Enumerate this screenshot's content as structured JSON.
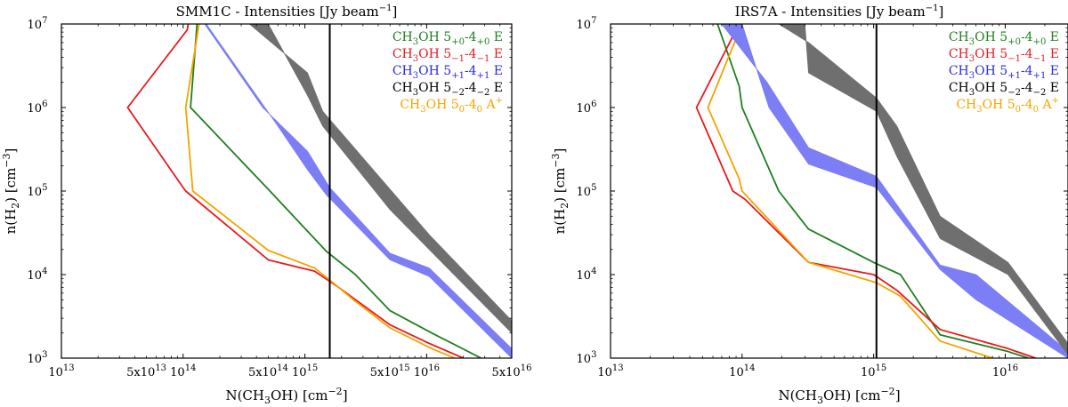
{
  "chart_data": [
    {
      "type": "line",
      "title_prefix": "SMM1C - Intensities [Jy beam",
      "title_sup": "−1",
      "title_suffix": "]",
      "xscale": "log",
      "yscale": "log",
      "xlim": [
        10000000000000.0,
        5e+16
      ],
      "ylim": [
        1000,
        10000000
      ],
      "vline_x": 1600000000000000.0,
      "x_ticks": [
        {
          "value": 10000000000000.0,
          "mantissa": "",
          "base": "10",
          "exp": "13"
        },
        {
          "value": 50000000000000.0,
          "mantissa": "5x",
          "base": "10",
          "exp": "13"
        },
        {
          "value": 100000000000000.0,
          "mantissa": "",
          "base": "10",
          "exp": "14"
        },
        {
          "value": 500000000000000.0,
          "mantissa": "5x",
          "base": "10",
          "exp": "14"
        },
        {
          "value": 1000000000000000.0,
          "mantissa": "",
          "base": "10",
          "exp": "15"
        },
        {
          "value": 5000000000000000.0,
          "mantissa": "5x",
          "base": "10",
          "exp": "15"
        },
        {
          "value": 1e+16,
          "mantissa": "",
          "base": "10",
          "exp": "16"
        },
        {
          "value": 5e+16,
          "mantissa": "5x",
          "base": "10",
          "exp": "16"
        }
      ],
      "y_ticks": [
        {
          "value": 1000,
          "base": "10",
          "exp": "3"
        },
        {
          "value": 10000,
          "base": "10",
          "exp": "4"
        },
        {
          "value": 100000,
          "base": "10",
          "exp": "5"
        },
        {
          "value": 1000000,
          "base": "10",
          "exp": "6"
        },
        {
          "value": 10000000,
          "base": "10",
          "exp": "7"
        }
      ],
      "xlabel": {
        "a": "N(CH",
        "sub": "3",
        "b": "OH) [cm",
        "sup": "−2",
        "c": "]"
      },
      "ylabel": {
        "a": "n(H",
        "sub": "2",
        "b": ") [cm",
        "sup": "−3",
        "c": "]"
      },
      "series": [
        {
          "name": "green",
          "color": "#1f7f1f",
          "kind": "line",
          "points": [
            [
              130000000000000.0,
              10000000.0
            ],
            [
              115000000000000.0,
              1000000.0
            ],
            [
              500000000000000.0,
              105000.0
            ],
            [
              1500000000000000.0,
              19000.0
            ],
            [
              2600000000000000.0,
              10000.0
            ],
            [
              5000000000000000.0,
              3700.0
            ],
            [
              1.1e+16,
              2000.0
            ],
            [
              2.8e+16,
              1000.0
            ]
          ]
        },
        {
          "name": "red",
          "color": "#e8191e",
          "kind": "line",
          "points": [
            [
              110000000000000.0,
              10000000.0
            ],
            [
              108000000000000.0,
              8500000.0
            ],
            [
              35000000000000.0,
              1000000.0
            ],
            [
              100000000000000.0,
              110000.0
            ],
            [
              105000000000000.0,
              100000.0
            ],
            [
              500000000000000.0,
              15000.0
            ],
            [
              1200000000000000.0,
              11000.0
            ],
            [
              1900000000000000.0,
              7000.0
            ],
            [
              5000000000000000.0,
              2500.0
            ],
            [
              1.05e+16,
              1500.0
            ],
            [
              2e+16,
              1000.0
            ]
          ]
        },
        {
          "name": "orange",
          "color": "#f5a300",
          "kind": "line",
          "points": [
            [
              135000000000000.0,
              10000000.0
            ],
            [
              105000000000000.0,
              1000000.0
            ],
            [
              120000000000000.0,
              100000.0
            ],
            [
              500000000000000.0,
              19500.0
            ],
            [
              1200000000000000.0,
              12000.0
            ],
            [
              1700000000000000.0,
              8000.0
            ],
            [
              2500000000000000.0,
              5000.0
            ],
            [
              5000000000000000.0,
              2300.0
            ],
            [
              1.1e+16,
              1300.0
            ],
            [
              1.7e+16,
              1000.0
            ]
          ]
        },
        {
          "name": "blue",
          "color": "#7b7ef5",
          "kind": "band",
          "upper": [
            [
              150000000000000.0,
              10000000.0
            ],
            [
              450000000000000.0,
              1000000.0
            ],
            [
              1050000000000000.0,
              300000.0
            ],
            [
              1600000000000000.0,
              110000.0
            ],
            [
              5000000000000000.0,
              18000.0
            ],
            [
              1.05e+16,
              12000.0
            ],
            [
              5e+16,
              1300.0
            ]
          ],
          "lower": [
            [
              155000000000000.0,
              10000000.0
            ],
            [
              600000000000000.0,
              600000.0
            ],
            [
              1050000000000000.0,
              180000.0
            ],
            [
              1500000000000000.0,
              90000.0
            ],
            [
              5000000000000000.0,
              15000.0
            ],
            [
              1.05e+16,
              9500.0
            ],
            [
              5e+16,
              1000.0
            ]
          ]
        },
        {
          "name": "gray",
          "color": "#6f6f6f",
          "kind": "band",
          "upper": [
            [
              350000000000000.0,
              10000000.0
            ],
            [
              1050000000000000.0,
              2600000.0
            ],
            [
              1400000000000000.0,
              900000.0
            ],
            [
              5000000000000000.0,
              105000.0
            ],
            [
              1.05e+16,
              30000.0
            ],
            [
              5e+16,
              2800.0
            ]
          ],
          "lower": [
            [
              500000000000000.0,
              10000000.0
            ],
            [
              1050000000000000.0,
              1400000.0
            ],
            [
              1400000000000000.0,
              600000.0
            ],
            [
              5000000000000000.0,
              60000.0
            ],
            [
              1.05e+16,
              20000.0
            ],
            [
              5e+16,
              2000.0
            ]
          ]
        }
      ]
    },
    {
      "type": "line",
      "title_prefix": "IRS7A - Intensities [Jy beam",
      "title_sup": "−1",
      "title_suffix": "]",
      "xscale": "log",
      "yscale": "log",
      "xlim": [
        10000000000000.0,
        3e+16
      ],
      "ylim": [
        1000,
        10000000
      ],
      "vline_x": 1050000000000000.0,
      "x_ticks": [
        {
          "value": 10000000000000.0,
          "mantissa": "",
          "base": "10",
          "exp": "13"
        },
        {
          "value": 100000000000000.0,
          "mantissa": "",
          "base": "10",
          "exp": "14"
        },
        {
          "value": 1000000000000000.0,
          "mantissa": "",
          "base": "10",
          "exp": "15"
        },
        {
          "value": 1e+16,
          "mantissa": "",
          "base": "10",
          "exp": "16"
        }
      ],
      "y_ticks": [
        {
          "value": 1000,
          "base": "10",
          "exp": "3"
        },
        {
          "value": 10000,
          "base": "10",
          "exp": "4"
        },
        {
          "value": 100000,
          "base": "10",
          "exp": "5"
        },
        {
          "value": 1000000,
          "base": "10",
          "exp": "6"
        },
        {
          "value": 10000000,
          "base": "10",
          "exp": "7"
        }
      ],
      "xlabel": {
        "a": "N(CH",
        "sub": "3",
        "b": "OH) [cm",
        "sup": "−2",
        "c": "]"
      },
      "ylabel": {
        "a": "n(H",
        "sub": "2",
        "b": ") [cm",
        "sup": "−3",
        "c": "]"
      },
      "series": [
        {
          "name": "green",
          "color": "#1f7f1f",
          "kind": "line",
          "points": [
            [
              65000000000000.0,
              10000000.0
            ],
            [
              95000000000000.0,
              1800000.0
            ],
            [
              100000000000000.0,
              1000000.0
            ],
            [
              190000000000000.0,
              100000.0
            ],
            [
              320000000000000.0,
              35000.0
            ],
            [
              1000000000000000.0,
              14000.0
            ],
            [
              1600000000000000.0,
              10000.0
            ],
            [
              3200000000000000.0,
              1900.0
            ],
            [
              1.05e+16,
              1200.0
            ],
            [
              1.5e+16,
              1000.0
            ]
          ]
        },
        {
          "name": "red",
          "color": "#e8191e",
          "kind": "line",
          "points": [
            [
              95000000000000.0,
              10000000.0
            ],
            [
              45000000000000.0,
              1000000.0
            ],
            [
              85000000000000.0,
              100000.0
            ],
            [
              105000000000000.0,
              80000.0
            ],
            [
              320000000000000.0,
              14000.0
            ],
            [
              1000000000000000.0,
              10000.0
            ],
            [
              1500000000000000.0,
              6500.0
            ],
            [
              3200000000000000.0,
              2200.0
            ],
            [
              1.05e+16,
              1300.0
            ],
            [
              1.7e+16,
              1000.0
            ]
          ]
        },
        {
          "name": "orange",
          "color": "#f5a300",
          "kind": "line",
          "points": [
            [
              100000000000000.0,
              10000000.0
            ],
            [
              55000000000000.0,
              1000000.0
            ],
            [
              95000000000000.0,
              140000.0
            ],
            [
              100000000000000.0,
              100000.0
            ],
            [
              320000000000000.0,
              14000.0
            ],
            [
              1050000000000000.0,
              8000.0
            ],
            [
              1600000000000000.0,
              5500.0
            ],
            [
              3200000000000000.0,
              1600.0
            ],
            [
              8000000000000000.0,
              1000.0
            ]
          ]
        },
        {
          "name": "blue",
          "color": "#7b7ef5",
          "kind": "band",
          "upper": [
            [
              70000000000000.0,
              10000000.0
            ],
            [
              155000000000000.0,
              2000000.0
            ],
            [
              320000000000000.0,
              330000.0
            ],
            [
              1050000000000000.0,
              150000.0
            ],
            [
              3200000000000000.0,
              13000.0
            ],
            [
              6000000000000000.0,
              10000.0
            ],
            [
              3e+16,
              1200.0
            ]
          ],
          "lower": [
            [
              100000000000000.0,
              10000000.0
            ],
            [
              160000000000000.0,
              1000000.0
            ],
            [
              320000000000000.0,
              210000.0
            ],
            [
              1050000000000000.0,
              110000.0
            ],
            [
              3200000000000000.0,
              11500.0
            ],
            [
              6000000000000000.0,
              5000.0
            ],
            [
              3e+16,
              1000.0
            ]
          ]
        },
        {
          "name": "gray",
          "color": "#6f6f6f",
          "kind": "band",
          "upper": [
            [
              190000000000000.0,
              10000000.0
            ],
            [
              320000000000000.0,
              6000000.0
            ],
            [
              1050000000000000.0,
              1300000.0
            ],
            [
              1500000000000000.0,
              600000.0
            ],
            [
              3200000000000000.0,
              50000.0
            ],
            [
              1.05e+16,
              14000.0
            ],
            [
              3e+16,
              1500.0
            ]
          ],
          "lower": [
            [
              300000000000000.0,
              10000000.0
            ],
            [
              320000000000000.0,
              2600000.0
            ],
            [
              1050000000000000.0,
              900000.0
            ],
            [
              1500000000000000.0,
              260000.0
            ],
            [
              3200000000000000.0,
              27000.0
            ],
            [
              1.05e+16,
              10000.0
            ],
            [
              3e+16,
              1100.0
            ]
          ]
        }
      ],
      "legend_placement": "top-right"
    }
  ],
  "legend": [
    {
      "pre": "CH",
      "sub1": "3",
      "mid": "OH 5",
      "sub2": "+0",
      "mid2": "-4",
      "sub3": "+0",
      "tail": " E",
      "sup": "",
      "color": "#1f7f1f"
    },
    {
      "pre": "CH",
      "sub1": "3",
      "mid": "OH 5",
      "sub2": "−1",
      "mid2": "-4",
      "sub3": "−1",
      "tail": " E",
      "sup": "",
      "color": "#e8191e"
    },
    {
      "pre": "CH",
      "sub1": "3",
      "mid": "OH 5",
      "sub2": "+1",
      "mid2": "-4",
      "sub3": "+1",
      "tail": " E",
      "sup": "",
      "color": "#2a2ae8"
    },
    {
      "pre": "CH",
      "sub1": "3",
      "mid": "OH 5",
      "sub2": "−2",
      "mid2": "-4",
      "sub3": "−2",
      "tail": " E",
      "sup": "",
      "color": "#000000"
    },
    {
      "pre": "CH",
      "sub1": "3",
      "mid": "OH 5",
      "sub2": "0",
      "mid2": "-4",
      "sub3": "0",
      "tail": " A",
      "sup": "+",
      "color": "#f5a300"
    }
  ]
}
